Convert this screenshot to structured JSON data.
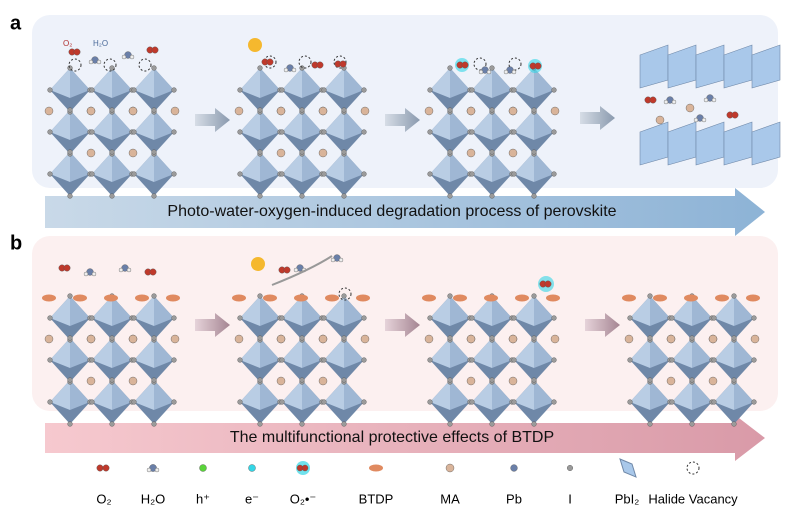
{
  "panel_a": {
    "label": "a",
    "species_labels": [
      "O₂",
      "H₂O"
    ],
    "banner": "Photo-water-oxygen-induced degradation process of perovskite"
  },
  "panel_b": {
    "label": "b",
    "banner": "The multifunctional protective effects of BTDP"
  },
  "legend": [
    "O₂",
    "H₂O",
    "h⁺",
    "e⁻",
    "O₂•⁻",
    "BTDP",
    "MA",
    "Pb",
    "I",
    "PbI₂",
    "Halide Vacancy"
  ]
}
